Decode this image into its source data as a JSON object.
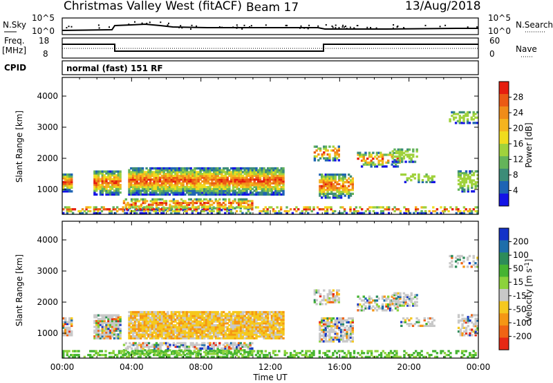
{
  "header": {
    "title": "Christmas Valley West (fitACF)",
    "beam": "Beam 17",
    "date": "13/Aug/2018"
  },
  "nsky_panel": {
    "left_label": "N.Sky",
    "right_label": "N.Search",
    "left_ticks": [
      "10^5",
      "10^0"
    ],
    "right_ticks": [
      "10^5",
      "10^0"
    ]
  },
  "freq_panel": {
    "left_label_1": "Freq.",
    "left_label_2": "[MHz]",
    "right_label": "Nave",
    "left_ticks": [
      "18",
      "8"
    ],
    "right_ticks": [
      "60",
      "0"
    ]
  },
  "cpid_panel": {
    "label": "CPID",
    "mode": "normal (fast) 151 RF"
  },
  "x_axis": {
    "label": "Time UT",
    "ticks": [
      "00:00",
      "04:00",
      "08:00",
      "12:00",
      "16:00",
      "20:00",
      "00:00"
    ]
  },
  "chart_data": [
    {
      "type": "heatmap",
      "parameter": "Power",
      "xlabel": "Time UT",
      "ylabel": "Slant Range [km]",
      "x_ticks": [
        "00:00",
        "04:00",
        "08:00",
        "12:00",
        "16:00",
        "20:00",
        "00:00"
      ],
      "y_ticks": [
        1000,
        2000,
        3000,
        4000
      ],
      "ylim": [
        200,
        4600
      ],
      "colorbar": {
        "label": "Power [dB]",
        "ticks": [
          "4",
          "8",
          "12",
          "16",
          "20",
          "24",
          "28"
        ],
        "colors": [
          "#1414e6",
          "#1e64b4",
          "#3c8c78",
          "#64b45a",
          "#a0d23c",
          "#f0dc1e",
          "#f5b41e",
          "#f08c19",
          "#eb5a14",
          "#e61e0f"
        ]
      }
    },
    {
      "type": "heatmap",
      "parameter": "Velocity",
      "xlabel": "Time UT",
      "ylabel": "Slant Range [km]",
      "x_ticks": [
        "00:00",
        "04:00",
        "08:00",
        "12:00",
        "16:00",
        "20:00",
        "00:00"
      ],
      "y_ticks": [
        1000,
        2000,
        3000,
        4000
      ],
      "ylim": [
        200,
        4600
      ],
      "colorbar": {
        "label": "Velocity [m s^-1]",
        "ticks": [
          "200",
          "100",
          "50",
          "15",
          "-15",
          "-50",
          "-100",
          "-200"
        ],
        "colors": [
          "#1432c8",
          "#1e6eaa",
          "#2d8c5a",
          "#46b432",
          "#8cd23c",
          "#c8c8c8",
          "#f5c81e",
          "#f59614",
          "#f06414",
          "#e62814"
        ]
      }
    }
  ],
  "colors": {
    "axis": "#000000",
    "missing": "#ffffff"
  }
}
